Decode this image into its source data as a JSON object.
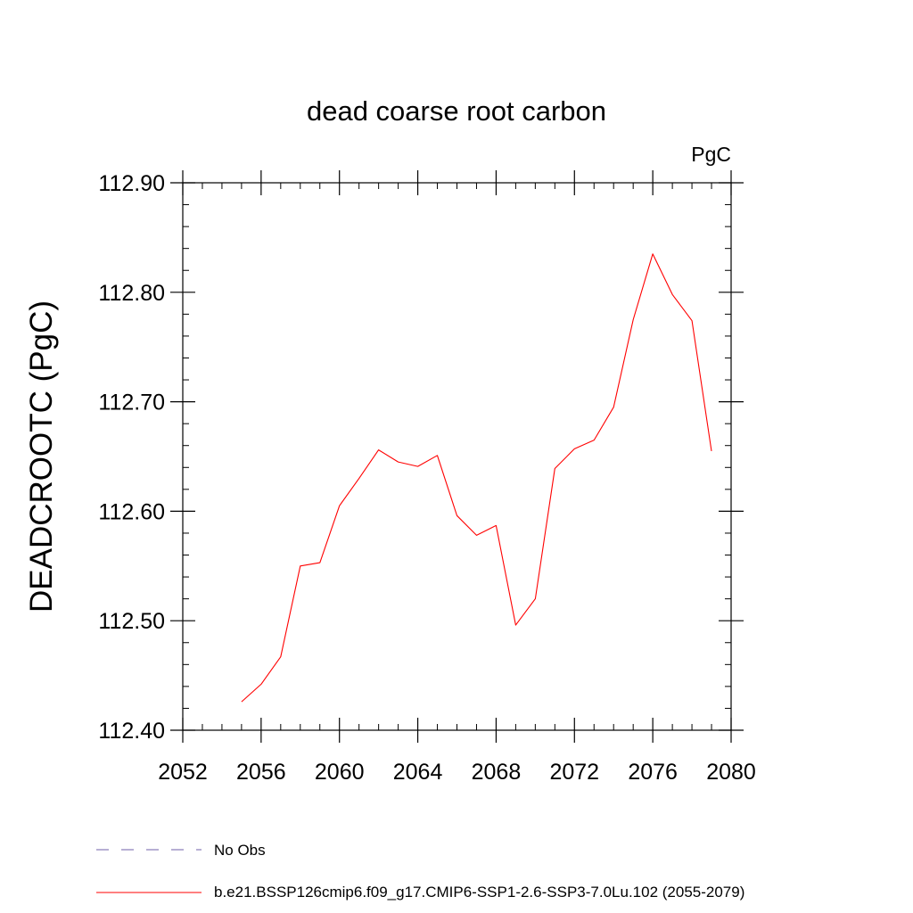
{
  "chart_data": {
    "type": "line",
    "title": "dead coarse root carbon",
    "units_label": "PgC",
    "ylabel": "DEADCROOTC  (PgC)",
    "xlabel": "",
    "xlim": [
      2052,
      2080
    ],
    "ylim": [
      112.4,
      112.9
    ],
    "x_ticks": [
      2052,
      2056,
      2060,
      2064,
      2068,
      2072,
      2076,
      2080
    ],
    "x_tick_labels": [
      "2052",
      "2056",
      "2060",
      "2064",
      "2068",
      "2072",
      "2076",
      "2080"
    ],
    "y_ticks": [
      112.4,
      112.5,
      112.6,
      112.7,
      112.8,
      112.9
    ],
    "y_tick_labels": [
      "112.40",
      "112.50",
      "112.60",
      "112.70",
      "112.80",
      "112.90"
    ],
    "grid": false,
    "legend_position": "bottom",
    "series": [
      {
        "name": "b.e21.BSSP126cmip6.f09_g17.CMIP6-SSP1-2.6-SSP3-7.0Lu.102 (2055-2079)",
        "color": "#ff0000",
        "style": "solid",
        "x": [
          2055,
          2056,
          2057,
          2058,
          2059,
          2060,
          2061,
          2062,
          2063,
          2064,
          2065,
          2066,
          2067,
          2068,
          2069,
          2070,
          2071,
          2072,
          2073,
          2074,
          2075,
          2076,
          2077,
          2078,
          2079
        ],
        "y": [
          112.426,
          112.442,
          112.467,
          112.55,
          112.553,
          112.605,
          112.63,
          112.656,
          112.645,
          112.641,
          112.651,
          112.596,
          112.578,
          112.587,
          112.496,
          112.52,
          112.639,
          112.657,
          112.665,
          112.695,
          112.775,
          112.835,
          112.798,
          112.774,
          112.655
        ]
      }
    ],
    "legend": [
      {
        "label": "No Obs",
        "color": "#6f5fa8",
        "style": "dashed"
      },
      {
        "label": "b.e21.BSSP126cmip6.f09_g17.CMIP6-SSP1-2.6-SSP3-7.0Lu.102 (2055-2079)",
        "color": "#ff0000",
        "style": "solid"
      }
    ]
  }
}
